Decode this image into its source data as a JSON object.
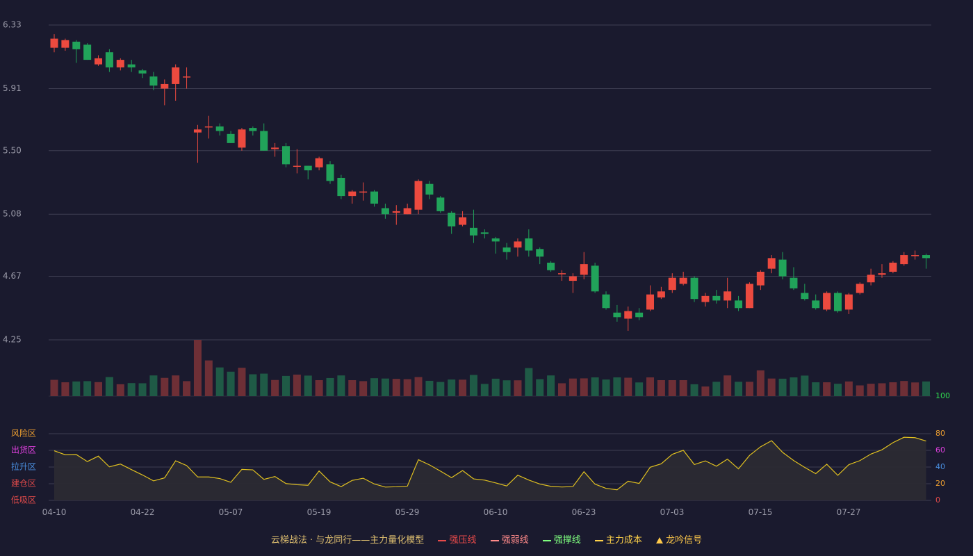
{
  "chart_data": {
    "type": "candlestick",
    "x_tick_labels": [
      "04-10",
      "04-22",
      "05-07",
      "05-19",
      "05-29",
      "06-10",
      "06-23",
      "07-03",
      "07-15",
      "07-27"
    ],
    "price_axis": {
      "ticks": [
        "6.33",
        "5.91",
        "5.50",
        "5.08",
        "4.67",
        "4.25"
      ],
      "ylim": [
        4.25,
        6.33
      ]
    },
    "candles": [
      [
        6.18,
        6.24,
        6.15,
        6.27
      ],
      [
        6.18,
        6.23,
        6.16,
        6.24
      ],
      [
        6.22,
        6.17,
        6.08,
        6.23
      ],
      [
        6.2,
        6.1,
        6.1,
        6.21
      ],
      [
        6.07,
        6.11,
        6.06,
        6.13
      ],
      [
        6.15,
        6.05,
        6.02,
        6.17
      ],
      [
        6.05,
        6.1,
        6.03,
        6.11
      ],
      [
        6.07,
        6.05,
        6.02,
        6.1
      ],
      [
        6.03,
        6.01,
        5.98,
        6.04
      ],
      [
        5.99,
        5.93,
        5.9,
        6.02
      ],
      [
        5.91,
        5.94,
        5.8,
        5.97
      ],
      [
        5.94,
        6.05,
        5.83,
        6.07
      ],
      [
        5.99,
        5.99,
        5.91,
        6.05
      ],
      [
        5.62,
        5.64,
        5.42,
        5.67
      ],
      [
        5.66,
        5.66,
        5.58,
        5.73
      ],
      [
        5.66,
        5.63,
        5.6,
        5.68
      ],
      [
        5.61,
        5.55,
        5.55,
        5.63
      ],
      [
        5.52,
        5.64,
        5.5,
        5.65
      ],
      [
        5.65,
        5.63,
        5.6,
        5.66
      ],
      [
        5.63,
        5.5,
        5.5,
        5.68
      ],
      [
        5.51,
        5.52,
        5.46,
        5.55
      ],
      [
        5.53,
        5.41,
        5.39,
        5.55
      ],
      [
        5.4,
        5.4,
        5.35,
        5.51
      ],
      [
        5.4,
        5.37,
        5.31,
        5.4
      ],
      [
        5.39,
        5.45,
        5.37,
        5.46
      ],
      [
        5.41,
        5.3,
        5.28,
        5.43
      ],
      [
        5.32,
        5.2,
        5.18,
        5.34
      ],
      [
        5.2,
        5.23,
        5.15,
        5.24
      ],
      [
        5.23,
        5.23,
        5.17,
        5.29
      ],
      [
        5.23,
        5.15,
        5.13,
        5.24
      ],
      [
        5.12,
        5.08,
        5.05,
        5.15
      ],
      [
        5.09,
        5.1,
        5.01,
        5.14
      ],
      [
        5.08,
        5.12,
        5.08,
        5.15
      ],
      [
        5.11,
        5.3,
        5.08,
        5.31
      ],
      [
        5.28,
        5.21,
        5.18,
        5.3
      ],
      [
        5.19,
        5.1,
        5.09,
        5.2
      ],
      [
        5.09,
        5.0,
        4.95,
        5.1
      ],
      [
        5.01,
        5.06,
        5.0,
        5.1
      ],
      [
        4.99,
        4.94,
        4.89,
        5.11
      ],
      [
        4.96,
        4.95,
        4.92,
        4.98
      ],
      [
        4.92,
        4.9,
        4.82,
        4.93
      ],
      [
        4.86,
        4.83,
        4.78,
        4.89
      ],
      [
        4.86,
        4.9,
        4.8,
        4.92
      ],
      [
        4.92,
        4.84,
        4.8,
        4.98
      ],
      [
        4.85,
        4.8,
        4.75,
        4.86
      ],
      [
        4.76,
        4.71,
        4.7,
        4.77
      ],
      [
        4.69,
        4.69,
        4.64,
        4.71
      ],
      [
        4.64,
        4.67,
        4.56,
        4.69
      ],
      [
        4.68,
        4.75,
        4.65,
        4.83
      ],
      [
        4.74,
        4.57,
        4.56,
        4.76
      ],
      [
        4.55,
        4.46,
        4.45,
        4.57
      ],
      [
        4.43,
        4.4,
        4.37,
        4.48
      ],
      [
        4.39,
        4.44,
        4.31,
        4.47
      ],
      [
        4.43,
        4.4,
        4.38,
        4.46
      ],
      [
        4.45,
        4.55,
        4.44,
        4.61
      ],
      [
        4.53,
        4.57,
        4.52,
        4.6
      ],
      [
        4.58,
        4.66,
        4.56,
        4.69
      ],
      [
        4.62,
        4.66,
        4.61,
        4.7
      ],
      [
        4.66,
        4.52,
        4.5,
        4.67
      ],
      [
        4.5,
        4.54,
        4.47,
        4.56
      ],
      [
        4.54,
        4.51,
        4.49,
        4.58
      ],
      [
        4.51,
        4.57,
        4.46,
        4.66
      ],
      [
        4.51,
        4.46,
        4.44,
        4.54
      ],
      [
        4.46,
        4.62,
        4.46,
        4.63
      ],
      [
        4.61,
        4.7,
        4.58,
        4.71
      ],
      [
        4.72,
        4.79,
        4.69,
        4.81
      ],
      [
        4.78,
        4.67,
        4.65,
        4.83
      ],
      [
        4.66,
        4.59,
        4.58,
        4.73
      ],
      [
        4.56,
        4.52,
        4.51,
        4.62
      ],
      [
        4.51,
        4.46,
        4.45,
        4.55
      ],
      [
        4.45,
        4.56,
        4.44,
        4.57
      ],
      [
        4.56,
        4.44,
        4.43,
        4.57
      ],
      [
        4.45,
        4.55,
        4.42,
        4.56
      ],
      [
        4.56,
        4.62,
        4.55,
        4.63
      ],
      [
        4.63,
        4.68,
        4.61,
        4.72
      ],
      [
        4.68,
        4.69,
        4.66,
        4.75
      ],
      [
        4.7,
        4.76,
        4.69,
        4.77
      ],
      [
        4.75,
        4.81,
        4.74,
        4.83
      ],
      [
        4.81,
        4.81,
        4.78,
        4.84
      ],
      [
        4.81,
        4.79,
        4.72,
        4.82
      ]
    ],
    "volume": [
      1.0,
      0.85,
      0.9,
      0.92,
      0.86,
      1.17,
      0.73,
      0.8,
      0.79,
      1.27,
      1.12,
      1.27,
      0.92,
      3.45,
      2.19,
      1.76,
      1.5,
      1.74,
      1.34,
      1.38,
      0.99,
      1.24,
      1.32,
      1.26,
      0.98,
      1.11,
      1.27,
      0.98,
      0.92,
      1.1,
      1.08,
      1.06,
      1.04,
      1.17,
      0.94,
      0.87,
      1.02,
      1.01,
      1.3,
      0.75,
      1.07,
      0.97,
      0.97,
      1.72,
      1.04,
      1.27,
      0.79,
      1.08,
      1.09,
      1.15,
      1.02,
      1.15,
      1.13,
      0.84,
      1.15,
      0.98,
      0.98,
      0.98,
      0.73,
      0.59,
      0.88,
      1.27,
      0.88,
      0.88,
      1.58,
      1.08,
      1.07,
      1.15,
      1.26,
      0.85,
      0.85,
      0.76,
      0.9,
      0.66,
      0.76,
      0.79,
      0.85,
      0.93,
      0.84,
      0.9
    ],
    "indicator": {
      "axis_ticks": [
        "100",
        "80",
        "60",
        "40",
        "20",
        "0"
      ],
      "ylim": [
        0,
        100
      ],
      "zone_labels": [
        "风险区",
        "出货区",
        "拉升区",
        "建仓区",
        "低吸区"
      ],
      "values": [
        59.5,
        54.7,
        55.0,
        46.6,
        53.1,
        40.2,
        43.6,
        36.9,
        30.5,
        23.4,
        27.0,
        47.5,
        41.8,
        28.1,
        28.1,
        26.2,
        21.7,
        37.2,
        36.6,
        25.2,
        28.6,
        20.2,
        18.8,
        18.1,
        35.3,
        22.2,
        16.5,
        24.0,
        26.6,
        19.7,
        16.0,
        16.4,
        17.1,
        48.8,
        42.6,
        35.1,
        27.3,
        35.8,
        25.8,
        24.3,
        21.0,
        17.3,
        30.2,
        24.4,
        19.6,
        16.9,
        16.1,
        16.6,
        34.4,
        19.5,
        14.4,
        12.7,
        23.0,
        20.3,
        39.8,
        43.9,
        55.3,
        60.1,
        43.0,
        47.4,
        41.0,
        49.5,
        37.8,
        53.9,
        64.3,
        71.6,
        57.6,
        47.8,
        39.6,
        32.1,
        43.4,
        30.1,
        42.9,
        47.7,
        55.6,
        60.7,
        69.3,
        75.7,
        75.2,
        71.2
      ]
    },
    "legend": {
      "title": "云梯战法 · 与龙同行——主力量化模型",
      "items": [
        "强压线",
        "强弱线",
        "强撑线",
        "主力成本",
        "龙吟信号"
      ]
    },
    "colors": {
      "up": "#ec4a3f",
      "down": "#21a35a",
      "vol_up": "#6e2f36",
      "vol_down": "#1f5a46",
      "line": "#e0c020",
      "fill": "#2b2a33",
      "grid": "#3e3e52",
      "legend_text": "#e0c070",
      "legend_qiangya": "#e84a4a",
      "legend_qiangruo": "#ff8a8a",
      "legend_qiangcheng": "#7fff7f",
      "legend_cost": "#ffd24a",
      "legend_signal": "#ffc94a",
      "zone_fengxian": "#f0a030",
      "zone_chuhuo": "#e040e0",
      "zone_lasheng": "#4a90e2",
      "zone_jiancang": "#e04a4a",
      "zone_dixi": "#e04a4a",
      "ind_tick_100": "#30e050",
      "ind_tick_80": "#f0a030",
      "ind_tick_60": "#e040e0",
      "ind_tick_40": "#4a90e2",
      "ind_tick_20": "#f0a030",
      "ind_tick_0": "#e04a4a"
    }
  }
}
